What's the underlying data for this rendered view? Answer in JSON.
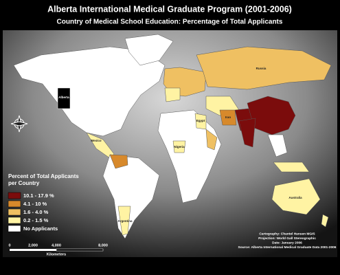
{
  "header": {
    "title": "Alberta International Medical Graduate Program (2001-2006)",
    "subtitle": "Country of Medical School Education: Percentage of Total Applicants"
  },
  "legend": {
    "title_line1": "Percent of Total Applicants",
    "title_line2": "per Country",
    "items": [
      {
        "label": "10.1 - 17.9 %",
        "color": "#7b0c0c"
      },
      {
        "label": "4.1 - 10 %",
        "color": "#d7892b"
      },
      {
        "label": "1.6 - 4.0 %",
        "color": "#efc062"
      },
      {
        "label": "0.2 - 1.5 %",
        "color": "#fff3a3"
      },
      {
        "label": "No Applicants",
        "color": "#ffffff"
      }
    ]
  },
  "scale_bar": {
    "ticks": [
      "0",
      "2,000",
      "4,000",
      "8,000"
    ],
    "unit": "Kilometers"
  },
  "credits": [
    "Cartography: Chantel Hansen MGIS",
    "Projection: World Gall Stereographic",
    "Date: January 2006",
    "Source: Alberta International Medical Graduate Data 2001-2006"
  ],
  "places": {
    "alberta": "Alberta",
    "russia": "Russia",
    "australia": "Australia",
    "argentina": "Argentina",
    "mexico": "Mexico",
    "egypt": "Egypt",
    "nigeria": "Nigeria",
    "iran": "Iran"
  }
}
